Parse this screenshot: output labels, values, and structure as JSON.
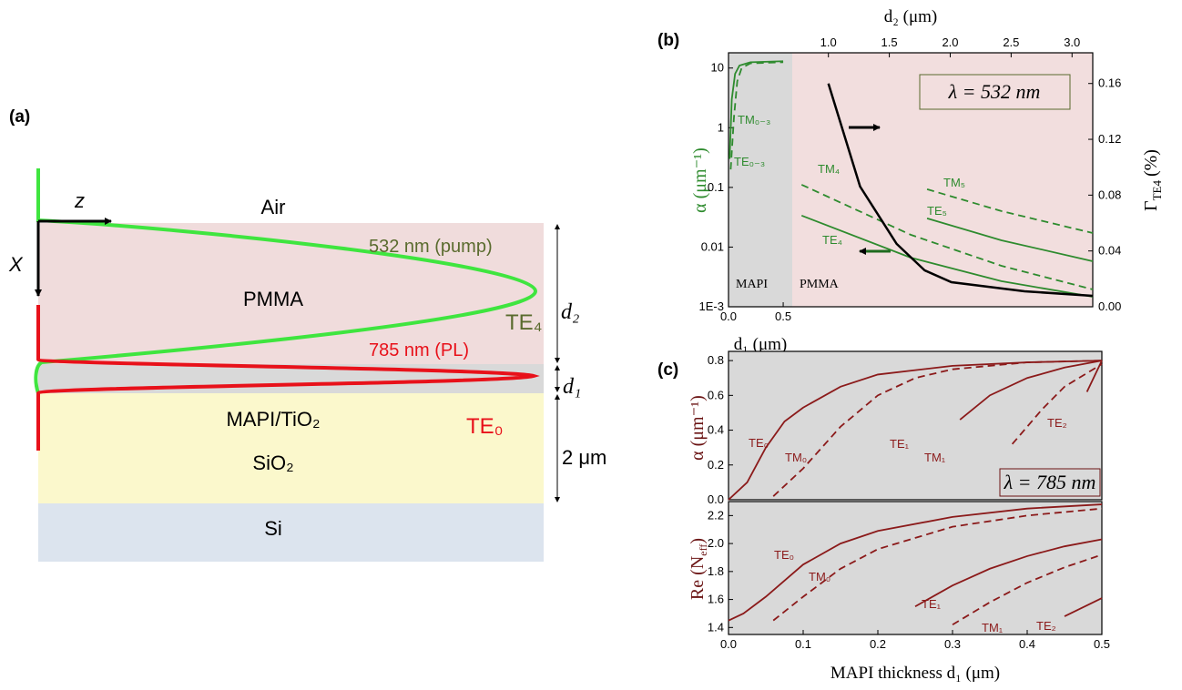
{
  "diagram": {
    "label": "(a)",
    "layers": [
      "Air",
      "PMMA",
      "MAPI/TiO₂",
      "SiO₂",
      "Si"
    ],
    "axes": [
      "z",
      "X"
    ],
    "modes": [
      {
        "wavelength": "532 nm (pump)",
        "name": "TE₄"
      },
      {
        "wavelength": "785 nm (PL)",
        "name": "TE₀"
      }
    ],
    "thicknesses": [
      "d₂",
      "d₁",
      "2 μm"
    ]
  },
  "chart_data": [
    {
      "type": "line",
      "label": "(b)",
      "xlabel": "d₁ (μm)",
      "x2label": "d₂ (μm)",
      "ylabel": "α (μm⁻¹)",
      "y2label": [
        "Γ",
        "TE4",
        "(%)"
      ],
      "xlim": [
        0,
        3.33
      ],
      "xticks": [
        {
          "value": 0,
          "label": "0.0"
        },
        0.5
      ],
      "x2lim": [
        0.18,
        3.17
      ],
      "x2ticks": [
        {
          "value": 1,
          "label": "1.0"
        },
        1.5,
        {
          "value": 2,
          "label": "2.0"
        },
        2.5,
        {
          "value": 3,
          "label": "3.0"
        }
      ],
      "yscale": "log",
      "ylim": [
        0.001,
        18
      ],
      "yticks": [
        {
          "value": 0.001,
          "label": "1E-3"
        },
        0.01,
        0.1,
        1,
        10
      ],
      "y2lim": [
        0,
        0.182
      ],
      "y2ticks": [
        {
          "value": 0,
          "label": "0.00"
        },
        0.04,
        0.08,
        0.12,
        0.16
      ],
      "annotations": [
        "λ = 532 nm",
        "MAPI",
        "PMMA"
      ],
      "series": [
        {
          "name": "TE₀₋₃",
          "color": "#2e8b2e",
          "dash": false,
          "x": [
            0.01,
            0.03,
            0.06,
            0.1,
            0.2,
            0.5
          ],
          "values": [
            0.3,
            3,
            8,
            11,
            12.5,
            13
          ]
        },
        {
          "name": "TM₀₋₃",
          "color": "#2e8b2e",
          "dash": true,
          "x": [
            0.02,
            0.05,
            0.08,
            0.12,
            0.2,
            0.5
          ],
          "values": [
            0.2,
            1.5,
            6,
            10,
            12,
            12.5
          ]
        },
        {
          "name": "TM₄",
          "color": "#2e8b2e",
          "dash": true,
          "xaxis": "x2",
          "x": [
            0.78,
            1.675,
            2.42,
            3.17
          ],
          "values": [
            0.111,
            0.0161,
            0.00486,
            0.00195
          ]
        },
        {
          "name": "TE₄",
          "color": "#2e8b2e",
          "dash": false,
          "xaxis": "x2",
          "x": [
            0.78,
            1.675,
            2.42,
            3.17
          ],
          "values": [
            0.0337,
            0.00667,
            0.00268,
            0.00147
          ]
        },
        {
          "name": "TM₅",
          "color": "#2e8b2e",
          "dash": true,
          "xaxis": "x2",
          "x": [
            1.81,
            2.42,
            3.17
          ],
          "values": [
            0.0931,
            0.0401,
            0.0172
          ]
        },
        {
          "name": "TE₅",
          "color": "#2e8b2e",
          "dash": false,
          "xaxis": "x2",
          "x": [
            1.81,
            2.42,
            3.17
          ],
          "values": [
            0.0303,
            0.013,
            0.0058
          ]
        },
        {
          "color": "#000000",
          "dash": false,
          "xaxis": "x2",
          "axis": "y2",
          "x": [
            1.0,
            1.26,
            1.56,
            1.79,
            2.01,
            2.61,
            3.17
          ],
          "values": [
            0.16,
            0.0862,
            0.0451,
            0.0261,
            0.0176,
            0.0111,
            0.0078
          ]
        }
      ]
    },
    {
      "type": "line",
      "label": "(c)",
      "ylabel": "α (μm⁻¹)",
      "xlim": [
        0,
        0.5
      ],
      "ylim": [
        0,
        0.853
      ],
      "yticks": [
        {
          "value": 0,
          "label": "0.0"
        },
        0.2,
        0.4,
        0.6,
        0.8
      ],
      "annotations": [
        "λ = 785 nm"
      ],
      "series": [
        {
          "name": "TE₀",
          "color": "#8b1a1a",
          "dash": false,
          "x": [
            0,
            0.025,
            0.05,
            0.075,
            0.1,
            0.15,
            0.2,
            0.3,
            0.4,
            0.5
          ],
          "values": [
            0,
            0.1,
            0.3,
            0.45,
            0.53,
            0.65,
            0.72,
            0.77,
            0.79,
            0.8
          ]
        },
        {
          "name": "TM₀",
          "color": "#8b1a1a",
          "dash": true,
          "x": [
            0.06,
            0.1,
            0.15,
            0.2,
            0.25,
            0.3,
            0.4,
            0.5
          ],
          "values": [
            0.02,
            0.18,
            0.42,
            0.6,
            0.7,
            0.75,
            0.79,
            0.8
          ]
        },
        {
          "name": "TE₁",
          "color": "#8b1a1a",
          "dash": false,
          "x": [
            0.31,
            0.35,
            0.4,
            0.45,
            0.5
          ],
          "values": [
            0.46,
            0.6,
            0.7,
            0.76,
            0.8
          ]
        },
        {
          "name": "TM₁",
          "color": "#8b1a1a",
          "dash": true,
          "x": [
            0.38,
            0.42,
            0.45,
            0.5
          ],
          "values": [
            0.32,
            0.52,
            0.65,
            0.78
          ]
        },
        {
          "name": "TE₂",
          "color": "#8b1a1a",
          "dash": false,
          "x": [
            0.48,
            0.5
          ],
          "values": [
            0.62,
            0.8
          ]
        }
      ]
    },
    {
      "type": "line",
      "xlabel": "MAPI thickness d₁ (μm)",
      "ylabel": [
        "Re (N",
        "eff",
        ")"
      ],
      "xlim": [
        0,
        0.5
      ],
      "xticks": [
        {
          "value": 0,
          "label": "0.0"
        },
        0.1,
        0.2,
        0.3,
        0.4,
        0.5
      ],
      "ylim": [
        1.35,
        2.3
      ],
      "yticks": [
        1.4,
        1.6,
        1.8,
        {
          "value": 2,
          "label": "2.0"
        },
        2.2
      ],
      "series": [
        {
          "name": "TE₀",
          "color": "#8b1a1a",
          "dash": false,
          "x": [
            0,
            0.02,
            0.05,
            0.1,
            0.15,
            0.2,
            0.3,
            0.4,
            0.5
          ],
          "values": [
            1.45,
            1.5,
            1.62,
            1.85,
            2.0,
            2.09,
            2.19,
            2.25,
            2.28
          ]
        },
        {
          "name": "TM₀",
          "color": "#8b1a1a",
          "dash": true,
          "x": [
            0.06,
            0.1,
            0.15,
            0.2,
            0.3,
            0.4,
            0.5
          ],
          "values": [
            1.45,
            1.62,
            1.82,
            1.96,
            2.12,
            2.2,
            2.25
          ]
        },
        {
          "name": "TE₁",
          "color": "#8b1a1a",
          "dash": false,
          "x": [
            0.25,
            0.3,
            0.35,
            0.4,
            0.45,
            0.5
          ],
          "values": [
            1.55,
            1.7,
            1.82,
            1.91,
            1.98,
            2.03
          ]
        },
        {
          "name": "TM₁",
          "color": "#8b1a1a",
          "dash": true,
          "x": [
            0.3,
            0.35,
            0.4,
            0.45,
            0.5
          ],
          "values": [
            1.42,
            1.58,
            1.72,
            1.83,
            1.92
          ]
        },
        {
          "name": "TE₂",
          "color": "#8b1a1a",
          "dash": false,
          "x": [
            0.45,
            0.5
          ],
          "values": [
            1.48,
            1.61
          ]
        }
      ]
    }
  ]
}
